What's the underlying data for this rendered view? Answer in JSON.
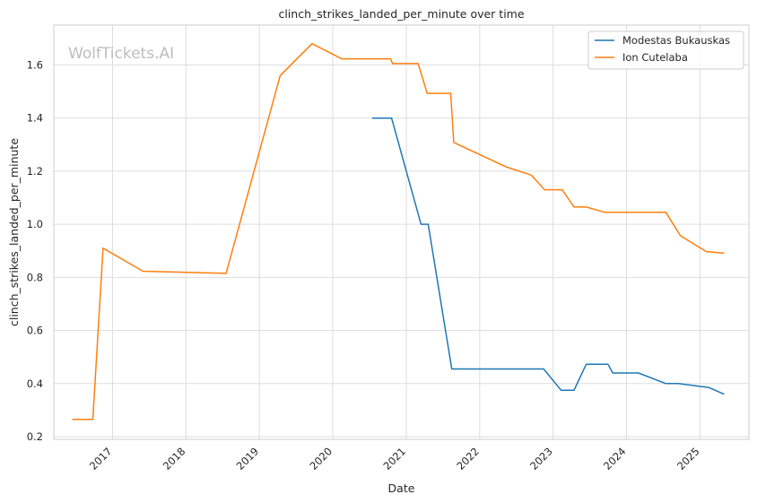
{
  "chart_data": {
    "type": "line",
    "title": "clinch_strikes_landed_per_minute over time",
    "xlabel": "Date",
    "ylabel": "clinch_strikes_landed_per_minute",
    "watermark": "WolfTickets.AI",
    "x_type": "date",
    "xlim": [
      "2016-03-15",
      "2025-09-01"
    ],
    "ylim": [
      0.19,
      1.75
    ],
    "x_ticks": [
      "2017",
      "2018",
      "2019",
      "2020",
      "2021",
      "2022",
      "2023",
      "2024",
      "2025"
    ],
    "y_ticks": [
      0.2,
      0.4,
      0.6,
      0.8,
      1.0,
      1.2,
      1.4,
      1.6
    ],
    "y_tick_labels": [
      "0.2",
      "0.4",
      "0.6",
      "0.8",
      "1.0",
      "1.2",
      "1.4",
      "1.6"
    ],
    "grid": true,
    "legend_position": "top-right",
    "series": [
      {
        "name": "Modestas Bukauskas",
        "color": "#1f77b4",
        "points": [
          {
            "x": "2020-07-15",
            "y": 1.4
          },
          {
            "x": "2020-10-20",
            "y": 1.4
          },
          {
            "x": "2021-03-15",
            "y": 1.0
          },
          {
            "x": "2021-04-20",
            "y": 1.0
          },
          {
            "x": "2021-08-15",
            "y": 0.455
          },
          {
            "x": "2022-11-15",
            "y": 0.455
          },
          {
            "x": "2023-02-10",
            "y": 0.375
          },
          {
            "x": "2023-04-15",
            "y": 0.375
          },
          {
            "x": "2023-06-15",
            "y": 0.473
          },
          {
            "x": "2023-10-01",
            "y": 0.473
          },
          {
            "x": "2023-10-25",
            "y": 0.44
          },
          {
            "x": "2024-03-01",
            "y": 0.44
          },
          {
            "x": "2024-07-15",
            "y": 0.4
          },
          {
            "x": "2024-09-15",
            "y": 0.4
          },
          {
            "x": "2025-02-15",
            "y": 0.385
          },
          {
            "x": "2025-05-01",
            "y": 0.36
          }
        ]
      },
      {
        "name": "Ion Cutelaba",
        "color": "#ff7f0e",
        "points": [
          {
            "x": "2016-06-15",
            "y": 0.265
          },
          {
            "x": "2016-09-25",
            "y": 0.265
          },
          {
            "x": "2016-11-15",
            "y": 0.91
          },
          {
            "x": "2017-06-01",
            "y": 0.823
          },
          {
            "x": "2018-07-20",
            "y": 0.815
          },
          {
            "x": "2019-04-15",
            "y": 1.56
          },
          {
            "x": "2019-09-20",
            "y": 1.68
          },
          {
            "x": "2020-02-15",
            "y": 1.623
          },
          {
            "x": "2020-10-15",
            "y": 1.623
          },
          {
            "x": "2020-10-25",
            "y": 1.605
          },
          {
            "x": "2021-03-01",
            "y": 1.605
          },
          {
            "x": "2021-04-15",
            "y": 1.493
          },
          {
            "x": "2021-08-10",
            "y": 1.493
          },
          {
            "x": "2021-08-25",
            "y": 1.308
          },
          {
            "x": "2022-05-15",
            "y": 1.215
          },
          {
            "x": "2022-09-15",
            "y": 1.185
          },
          {
            "x": "2022-11-20",
            "y": 1.13
          },
          {
            "x": "2023-02-15",
            "y": 1.13
          },
          {
            "x": "2023-04-15",
            "y": 1.065
          },
          {
            "x": "2023-06-15",
            "y": 1.065
          },
          {
            "x": "2023-09-15",
            "y": 1.045
          },
          {
            "x": "2024-07-15",
            "y": 1.045
          },
          {
            "x": "2024-09-25",
            "y": 0.957
          },
          {
            "x": "2025-02-01",
            "y": 0.897
          },
          {
            "x": "2025-05-01",
            "y": 0.891
          }
        ]
      }
    ]
  }
}
